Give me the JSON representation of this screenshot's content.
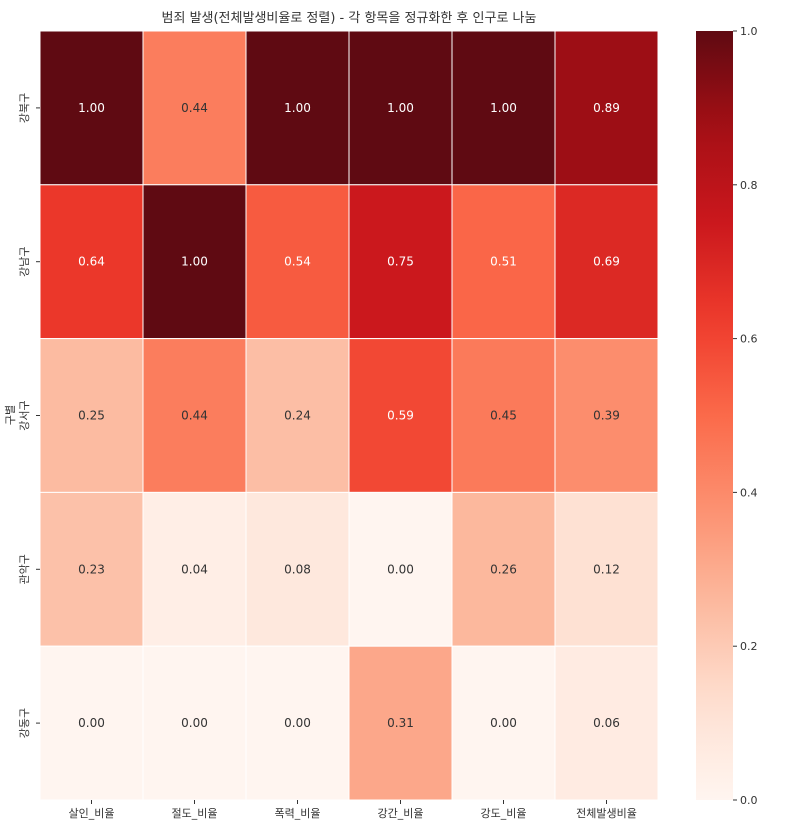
{
  "chart_data": {
    "type": "heatmap",
    "title": "범죄 발생(전체발생비율로 정렬) - 각 항목을 정규화한 후 인구로 나눔",
    "ylabel": "구별",
    "xlabel": "",
    "columns": [
      "살인_비율",
      "절도_비율",
      "폭력_비율",
      "강간_비율",
      "강도_비율",
      "전체발생비율"
    ],
    "rows": [
      "강북구",
      "강남구",
      "강서구",
      "관악구",
      "강동구"
    ],
    "values": [
      [
        1.0,
        0.44,
        1.0,
        1.0,
        1.0,
        0.89
      ],
      [
        0.64,
        1.0,
        0.54,
        0.75,
        0.51,
        0.69
      ],
      [
        0.25,
        0.44,
        0.24,
        0.59,
        0.45,
        0.39
      ],
      [
        0.23,
        0.04,
        0.08,
        0.0,
        0.26,
        0.12
      ],
      [
        0.0,
        0.0,
        0.0,
        0.31,
        0.0,
        0.06
      ]
    ],
    "colormap": "Reds",
    "vmin": 0.0,
    "vmax": 1.0,
    "colorbar_ticks": [
      "0.0",
      "0.2",
      "0.4",
      "0.6",
      "0.8",
      "1.0"
    ],
    "annotation_format": "0.00"
  }
}
